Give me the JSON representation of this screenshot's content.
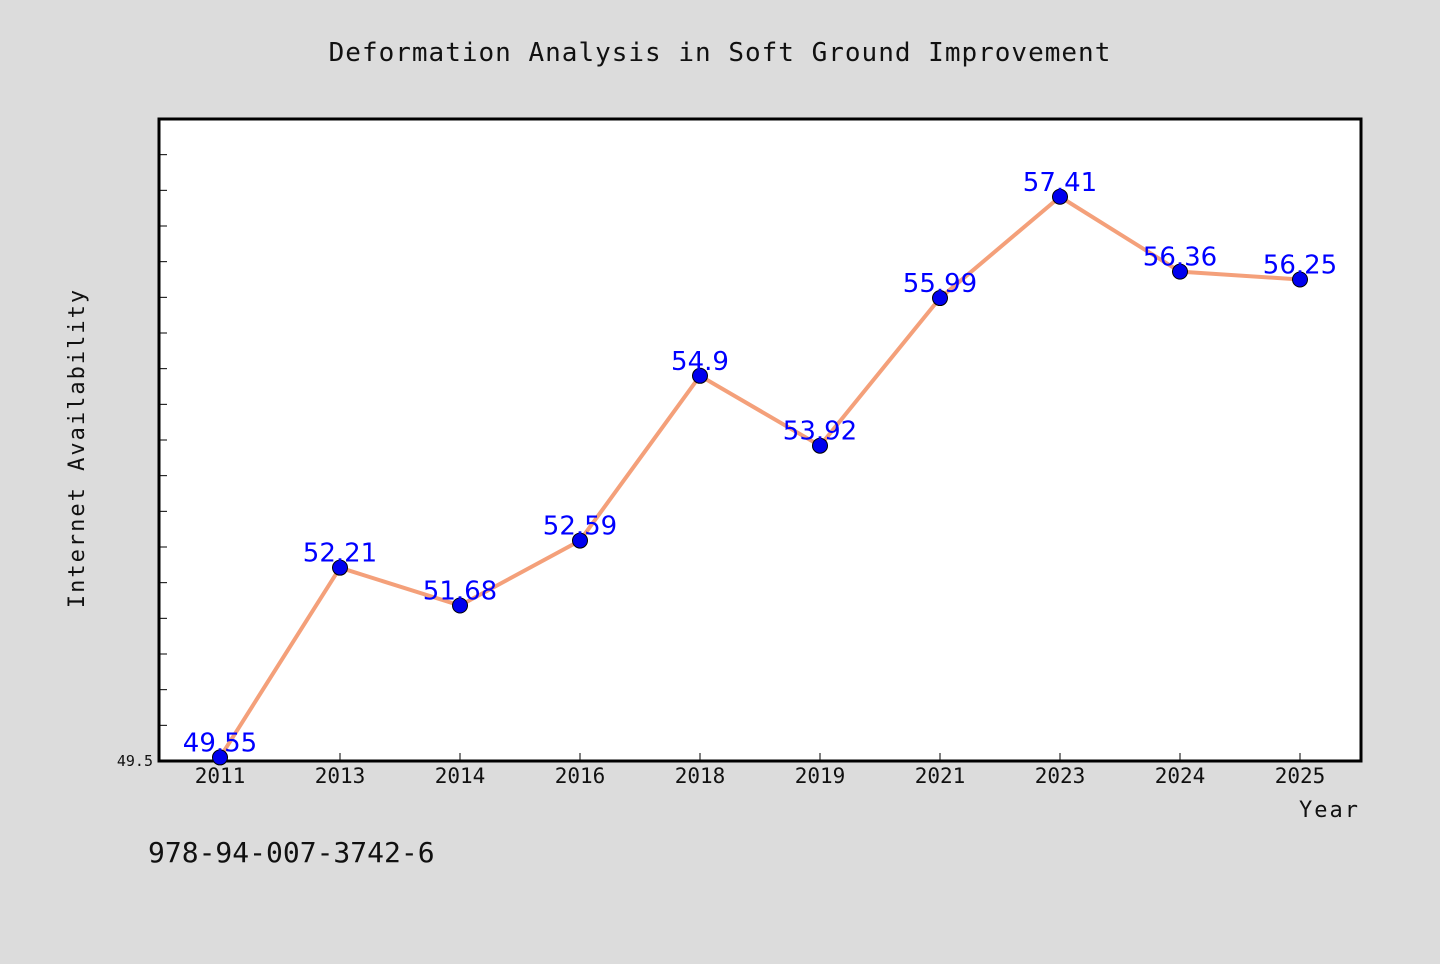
{
  "chart_data": {
    "type": "line",
    "title": "Deformation Analysis in Soft Ground Improvement",
    "xlabel": "Year",
    "ylabel": "Internet Availability",
    "categories": [
      "2011",
      "2013",
      "2014",
      "2016",
      "2018",
      "2019",
      "2021",
      "2023",
      "2024",
      "2025"
    ],
    "series": [
      {
        "values": [
          49.55,
          52.21,
          51.68,
          52.59,
          54.9,
          53.92,
          55.99,
          57.41,
          56.36,
          56.25
        ],
        "line_color": "#f4a07a",
        "marker_color": "#0000ee"
      }
    ],
    "data_labels": [
      "49.55",
      "52.21",
      "51.68",
      "52.59",
      "54.9",
      "53.92",
      "55.99",
      "57.41",
      "56.36",
      "56.25"
    ],
    "ylim": [
      49.5,
      58.5
    ],
    "y_tick_labels": [
      "49.5"
    ],
    "grid": false,
    "legend": "none"
  },
  "footer_text": "978-94-007-3742-6",
  "colors": {
    "background": "#dcdcdc",
    "plot_area": "#ffffff",
    "label": "#0000ff"
  }
}
